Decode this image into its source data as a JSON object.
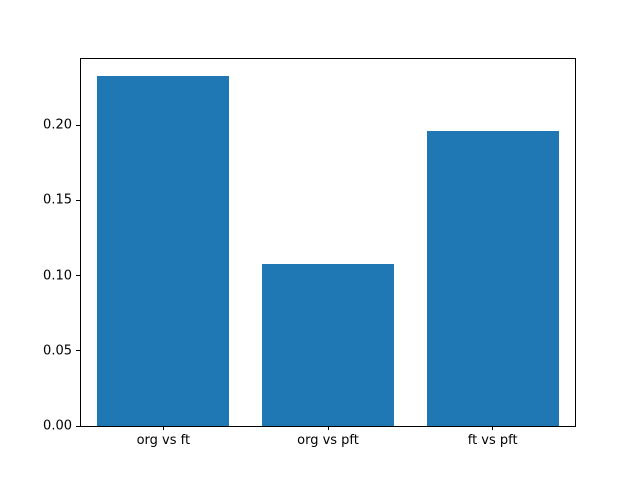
{
  "figure": {
    "background": "#ffffff",
    "spine_color": "#000000",
    "tick_color": "#000000",
    "text_color": "#000000"
  },
  "chart_data": {
    "type": "bar",
    "categories": [
      "org vs ft",
      "org vs pft",
      "ft vs pft"
    ],
    "values": [
      0.233,
      0.108,
      0.196
    ],
    "title": "",
    "xlabel": "",
    "ylabel": "",
    "ylim": [
      0,
      0.244
    ],
    "yticks": [
      0.0,
      0.05,
      0.1,
      0.15,
      0.2
    ],
    "ytick_labels": [
      "0.00",
      "0.05",
      "0.10",
      "0.15",
      "0.20"
    ],
    "bar_color": "#1f77b4",
    "bar_width_fraction": 0.8,
    "grid": false,
    "legend": null
  }
}
